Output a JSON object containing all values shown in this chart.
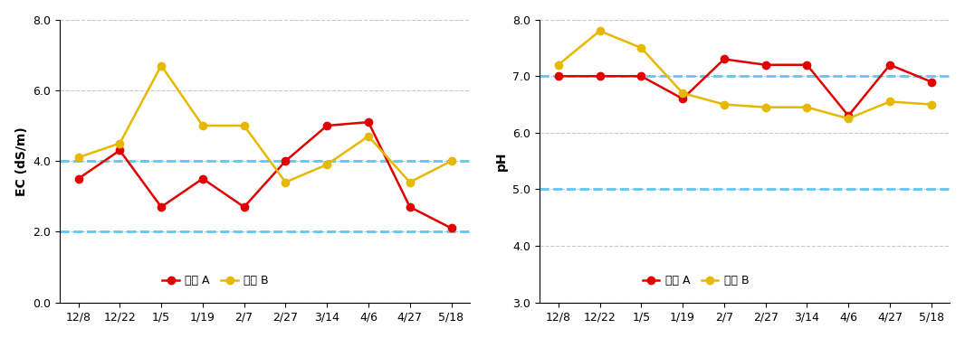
{
  "x_labels": [
    "12/8",
    "12/22",
    "1/5",
    "1/19",
    "2/7",
    "2/27",
    "3/14",
    "4/6",
    "4/27",
    "5/18"
  ],
  "ec_farmA": [
    3.5,
    4.3,
    2.7,
    3.5,
    2.7,
    4.0,
    5.0,
    5.1,
    2.7,
    2.1
  ],
  "ec_farmB": [
    4.1,
    4.5,
    6.7,
    5.0,
    5.0,
    3.4,
    3.9,
    4.7,
    3.4,
    4.0
  ],
  "ec_hlines": [
    2.0,
    4.0
  ],
  "ec_ylim": [
    0.0,
    8.0
  ],
  "ec_yticks": [
    0.0,
    2.0,
    4.0,
    6.0,
    8.0
  ],
  "ec_ylabel": "EC (dS/m)",
  "ph_farmA": [
    7.0,
    7.0,
    7.0,
    6.6,
    7.3,
    7.2,
    7.2,
    6.3,
    7.2,
    6.9
  ],
  "ph_farmB": [
    7.2,
    7.8,
    7.5,
    6.7,
    6.5,
    6.45,
    6.45,
    6.25,
    6.55,
    6.5
  ],
  "ph_hlines": [
    5.0,
    7.0
  ],
  "ph_ylim": [
    3.0,
    8.0
  ],
  "ph_yticks": [
    3.0,
    4.0,
    5.0,
    6.0,
    7.0,
    8.0
  ],
  "ph_ylabel": "pH",
  "color_A": "#e00000",
  "color_B": "#e6b800",
  "color_hline": "#5bc8f5",
  "color_grid": "#c8c8c8",
  "label_A": "농장 A",
  "label_B": "농장 B",
  "marker": "o",
  "linewidth": 1.8,
  "markersize": 6
}
